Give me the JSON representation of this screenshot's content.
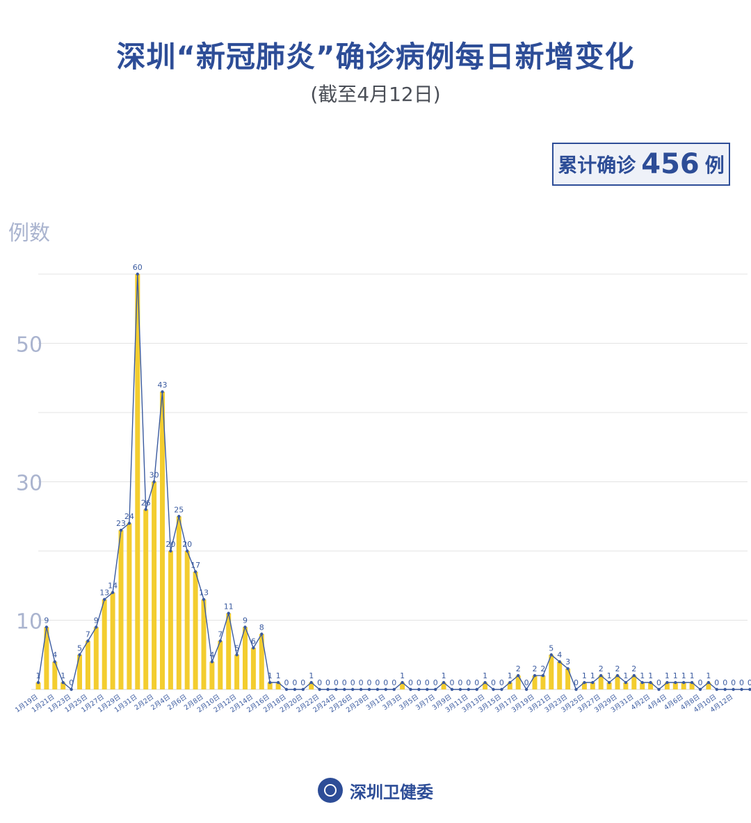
{
  "title": "深圳“新冠肺炎”确诊病例每日新增变化",
  "subtitle": "(截至4月12日)",
  "total": {
    "label": "累计确诊",
    "value": "456",
    "unit": "例"
  },
  "footer": {
    "org": "深圳卫健委",
    "logo_icon": "health-commission-seal-icon"
  },
  "colors": {
    "title": "#2d4d97",
    "bar": "#f3cd2f",
    "line": "#3a5a9f",
    "axis_text": "#aab4cf",
    "grid": "#e3e3e3"
  },
  "chart_data": {
    "type": "line",
    "ylabel": "例数",
    "ylim": [
      0,
      60
    ],
    "yticks": [
      "10",
      "30",
      "50"
    ],
    "ytick_values": [
      10,
      30,
      50
    ],
    "grid": true,
    "x_tick_labels": [
      "1月19日",
      "1月21日",
      "1月23日",
      "1月25日",
      "1月27日",
      "1月29日",
      "1月31日",
      "2月2日",
      "2月4日",
      "2月6日",
      "2月8日",
      "2月10日",
      "2月12日",
      "2月14日",
      "2月16日",
      "2月18日",
      "2月20日",
      "2月22日",
      "2月24日",
      "2月26日",
      "2月28日",
      "3月1日",
      "3月3日",
      "3月5日",
      "3月7日",
      "3月9日",
      "3月11日",
      "3月13日",
      "3月15日",
      "3月17日",
      "3月19日",
      "3月21日",
      "3月23日",
      "3月25日",
      "3月27日",
      "3月29日",
      "3月31日",
      "4月2日",
      "4月4日",
      "4月6日",
      "4月8日",
      "4月10日",
      "4月12日"
    ],
    "values": [
      1,
      9,
      4,
      1,
      0,
      5,
      7,
      9,
      13,
      14,
      23,
      24,
      60,
      26,
      30,
      43,
      20,
      25,
      20,
      17,
      13,
      4,
      7,
      11,
      5,
      9,
      6,
      8,
      1,
      1,
      0,
      0,
      0,
      1,
      0,
      0,
      0,
      0,
      0,
      0,
      0,
      0,
      0,
      0,
      1,
      0,
      0,
      0,
      0,
      1,
      0,
      0,
      0,
      0,
      1,
      0,
      0,
      1,
      2,
      0,
      2,
      2,
      5,
      4,
      3,
      0,
      1,
      1,
      2,
      1,
      2,
      1,
      2,
      1,
      1,
      0,
      1,
      1,
      1,
      1,
      0,
      1,
      0,
      0,
      0,
      0,
      0
    ]
  }
}
